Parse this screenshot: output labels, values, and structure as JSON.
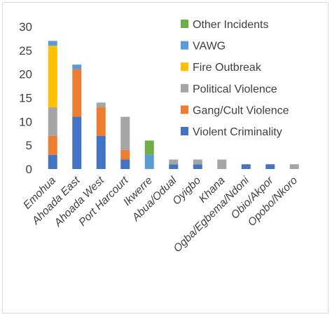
{
  "chart_data": {
    "type": "bar",
    "stacked": true,
    "title": "",
    "xlabel": "",
    "ylabel": "",
    "ylim": [
      0,
      30
    ],
    "yticks": [
      0,
      5,
      10,
      15,
      20,
      25,
      30
    ],
    "grid": false,
    "legend_position": "right",
    "categories": [
      "Emohua",
      "Ahoada East",
      "Ahoada West",
      "Port Harcourt",
      "Ikwerre",
      "Abua/Odual",
      "Oyigbo",
      "Khana",
      "Ogba/Egbema/Ndoni",
      "Obio/Akpor",
      "Opobo/Nkoro"
    ],
    "series": [
      {
        "name": "Violent Criminality",
        "color": "#4472C4",
        "values": [
          3,
          11,
          7,
          2,
          0,
          1,
          1,
          0,
          1,
          1,
          0
        ]
      },
      {
        "name": "Gang/Cult Violence",
        "color": "#ED7D31",
        "values": [
          4,
          10,
          6,
          2,
          0,
          0,
          0,
          0,
          0,
          0,
          0
        ]
      },
      {
        "name": "Political Violence",
        "color": "#A5A5A5",
        "values": [
          6,
          0,
          1,
          7,
          0,
          1,
          1,
          2,
          0,
          0,
          1
        ]
      },
      {
        "name": "Fire Outbreak",
        "color": "#FFC000",
        "values": [
          13,
          0,
          0,
          0,
          0,
          0,
          0,
          0,
          0,
          0,
          0
        ]
      },
      {
        "name": "VAWG",
        "color": "#5B9BD5",
        "values": [
          1,
          1,
          0,
          0,
          3,
          0,
          0,
          0,
          0,
          0,
          0
        ]
      },
      {
        "name": "Other Incidents",
        "color": "#70AD47",
        "values": [
          0,
          0,
          0,
          0,
          3,
          0,
          0,
          0,
          0,
          0,
          0
        ]
      }
    ]
  }
}
